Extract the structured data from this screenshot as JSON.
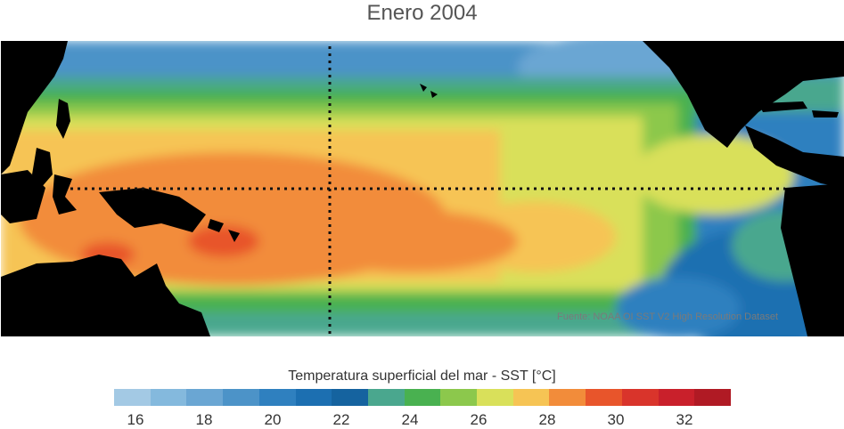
{
  "title": "Enero 2004",
  "source_note": "Fuente: NOAA OI SST V2 High Resolution Dataset",
  "legend": {
    "title": "Temperatura superficial del mar - SST  [°C]",
    "ticks": [
      "16",
      "18",
      "20",
      "22",
      "24",
      "26",
      "28",
      "30",
      "32"
    ],
    "colors": [
      "#a3c9e4",
      "#84b9dd",
      "#6aa6d3",
      "#4c93c8",
      "#2f80bf",
      "#1c6fb1",
      "#15639f",
      "#4aa78e",
      "#49b150",
      "#8cc84c",
      "#d9e05a",
      "#f6c454",
      "#f28c3a",
      "#e8552b",
      "#d9342b",
      "#c9202b",
      "#b01a24"
    ]
  }
}
